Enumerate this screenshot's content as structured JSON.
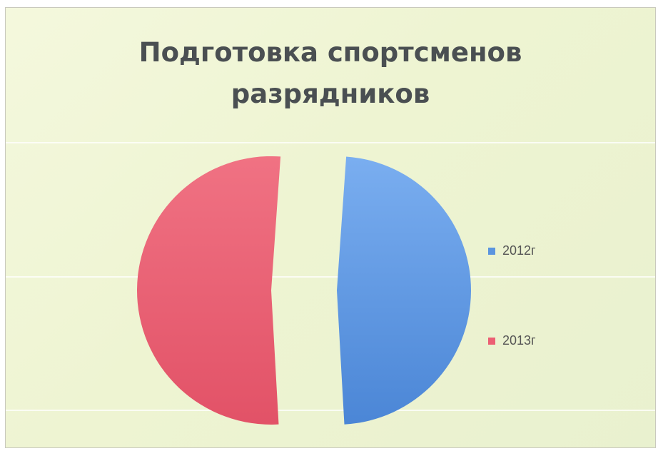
{
  "chart_data": {
    "type": "pie",
    "title": "Подготовка спортсменов разрядников",
    "title_lines": [
      "Подготовка спортсменов",
      "разрядников"
    ],
    "categories": [
      "2012г",
      "2013г"
    ],
    "values": [
      48,
      52
    ],
    "colors": [
      "#5b95df",
      "#ec5f73"
    ],
    "exploded": true,
    "legend_position": "right",
    "grid": true
  }
}
